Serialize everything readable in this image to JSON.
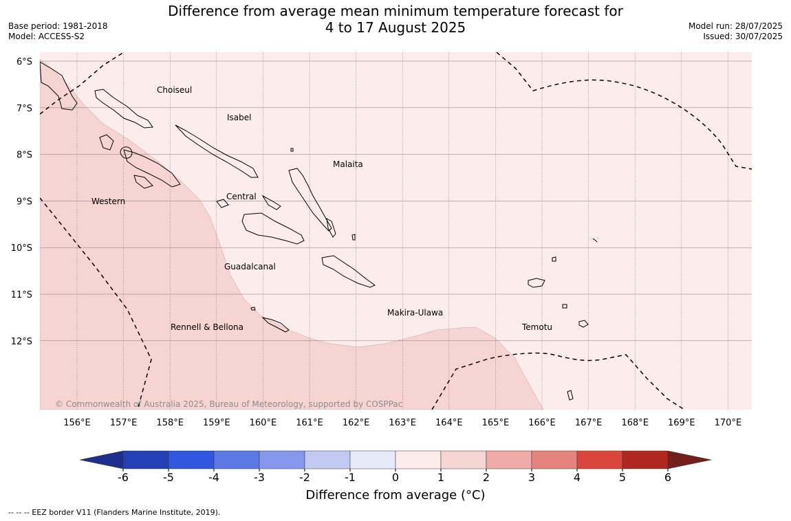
{
  "title_line1": "Difference from average mean minimum temperature forecast for",
  "title_line2": "4 to 17 August 2025",
  "base_period": "Base period: 1981-2018",
  "model": "Model: ACCESS-S2",
  "model_run": "Model run: 28/07/2025",
  "issued": "Issued: 30/07/2025",
  "copyright": "© Commonwealth of Australia 2025, Bureau of Meteorology, supported by COSPPac",
  "footnote": "--  --  -- EEZ border V11 (Flanders Marine Institute, 2019).",
  "colorbar": {
    "label": "Difference from average (°C)",
    "ticks": [
      "-6",
      "-5",
      "-4",
      "-3",
      "-2",
      "-1",
      "0",
      "1",
      "2",
      "3",
      "4",
      "5",
      "6"
    ],
    "colors": [
      "#1e2f8e",
      "#2540b4",
      "#3255dd",
      "#5b78e3",
      "#8598ec",
      "#c2c9f3",
      "#e6eafb",
      "#fceceb",
      "#f6d4d2",
      "#eeaba8",
      "#e4847c",
      "#d9473c",
      "#ae2820",
      "#731f1b"
    ]
  },
  "lat_labels": [
    "6°S",
    "7°S",
    "8°S",
    "9°S",
    "10°S",
    "11°S",
    "12°S"
  ],
  "lon_labels": [
    "156°E",
    "157°E",
    "158°E",
    "159°E",
    "160°E",
    "161°E",
    "162°E",
    "163°E",
    "164°E",
    "165°E",
    "166°E",
    "167°E",
    "168°E",
    "169°E",
    "170°E"
  ],
  "provinces": [
    "Choiseul",
    "Isabel",
    "Malaita",
    "Western",
    "Central",
    "Guadalcanal",
    "Makira-Ulawa",
    "Rennell & Bellona",
    "Temotu"
  ],
  "anomaly_classes": {
    "background": "0 to 1",
    "shaded_region": "1 to 2"
  }
}
